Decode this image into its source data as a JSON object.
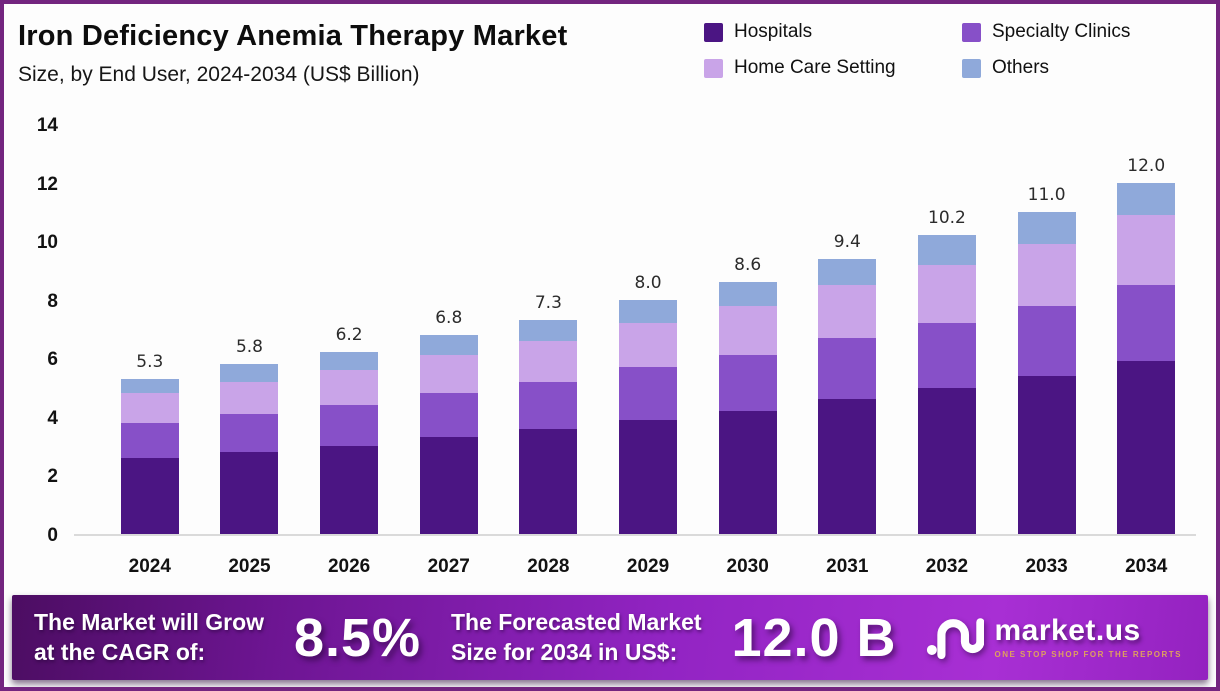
{
  "page": {
    "title": "Iron Deficiency Anemia Therapy Market",
    "subtitle": "Size, by End User, 2024-2034 (US$ Billion)"
  },
  "colors": {
    "hospitals": "#4b1583",
    "specialty_clinics": "#8750c8",
    "home_care_setting": "#c9a4e8",
    "others": "#8fa9da",
    "page_border": "#73257f",
    "baseline": "#dadada",
    "footer_gradient_start": "#4c0d62",
    "footer_gradient_end": "#a82fd4"
  },
  "legend": [
    {
      "label": "Hospitals",
      "color": "#4b1583"
    },
    {
      "label": "Specialty Clinics",
      "color": "#8750c8"
    },
    {
      "label": "Home Care Setting",
      "color": "#c9a4e8"
    },
    {
      "label": "Others",
      "color": "#8fa9da"
    }
  ],
  "chart_data": {
    "type": "bar",
    "stacked": true,
    "title": "Iron Deficiency Anemia Therapy Market Size, by End User, 2024-2034 (US$ Billion)",
    "xlabel": "",
    "ylabel": "US$ Billion",
    "ylim": [
      0,
      14
    ],
    "yticks": [
      0,
      2,
      4,
      6,
      8,
      10,
      12,
      14
    ],
    "grid": false,
    "legend_position": "top-right",
    "categories": [
      "2024",
      "2025",
      "2026",
      "2027",
      "2028",
      "2029",
      "2030",
      "2031",
      "2032",
      "2033",
      "2034"
    ],
    "series": [
      {
        "name": "Hospitals",
        "color": "#4b1583",
        "values": [
          2.6,
          2.8,
          3.0,
          3.3,
          3.6,
          3.9,
          4.2,
          4.6,
          5.0,
          5.4,
          5.9
        ]
      },
      {
        "name": "Specialty Clinics",
        "color": "#8750c8",
        "values": [
          1.2,
          1.3,
          1.4,
          1.5,
          1.6,
          1.8,
          1.9,
          2.1,
          2.2,
          2.4,
          2.6
        ]
      },
      {
        "name": "Home Care Setting",
        "color": "#c9a4e8",
        "values": [
          1.0,
          1.1,
          1.2,
          1.3,
          1.4,
          1.5,
          1.7,
          1.8,
          2.0,
          2.1,
          2.4
        ]
      },
      {
        "name": "Others",
        "color": "#8fa9da",
        "values": [
          0.5,
          0.6,
          0.6,
          0.7,
          0.7,
          0.8,
          0.8,
          0.9,
          1.0,
          1.1,
          1.1
        ]
      }
    ],
    "totals": [
      5.3,
      5.8,
      6.2,
      6.8,
      7.3,
      8.0,
      8.6,
      9.4,
      10.2,
      11.0,
      12.0
    ],
    "total_labels": [
      "5.3",
      "5.8",
      "6.2",
      "6.8",
      "7.3",
      "8.0",
      "8.6",
      "9.4",
      "10.2",
      "11.0",
      "12.0"
    ]
  },
  "footer": {
    "cagr_label_line1": "The Market will Grow",
    "cagr_label_line2": "at the CAGR of:",
    "cagr_value": "8.5%",
    "forecast_label_line1": "The Forecasted Market",
    "forecast_label_line2": "Size for 2034 in US$:",
    "forecast_value": "12.0 B",
    "brand": "market.us",
    "brand_tagline": "ONE STOP SHOP FOR THE REPORTS"
  }
}
